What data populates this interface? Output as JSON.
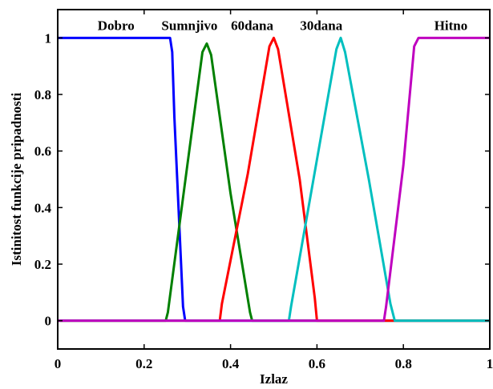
{
  "chart_data": {
    "type": "line",
    "title": "",
    "xlabel": "Izlaz",
    "ylabel": "Istinitost funkcije pripadnosti",
    "xlim": [
      0,
      1
    ],
    "ylim": [
      -0.1,
      1.1
    ],
    "xticks": [
      0,
      0.2,
      0.4,
      0.6,
      0.8,
      1
    ],
    "xtick_labels": [
      "0",
      "0.2",
      "0.4",
      "0.6",
      "0.8",
      "1"
    ],
    "yticks": [
      0,
      0.2,
      0.4,
      0.6,
      0.8,
      1
    ],
    "ytick_labels": [
      "0",
      "0.2",
      "0.4",
      "0.6",
      "0.8",
      "1"
    ],
    "grid": false,
    "series": [
      {
        "name": "Dobro",
        "color": "#0000ff",
        "x": [
          0,
          0.26,
          0.265,
          0.27,
          0.29,
          0.295,
          1
        ],
        "y": [
          1,
          1,
          0.95,
          0.72,
          0.05,
          0,
          0
        ]
      },
      {
        "name": "Sumnjivo",
        "color": "#008000",
        "x": [
          0,
          0.25,
          0.255,
          0.3,
          0.335,
          0.345,
          0.355,
          0.4,
          0.445,
          0.45,
          1
        ],
        "y": [
          0,
          0,
          0.03,
          0.55,
          0.95,
          0.98,
          0.94,
          0.45,
          0.03,
          0,
          0
        ]
      },
      {
        "name": "60dana",
        "color": "#ff0000",
        "x": [
          0,
          0.375,
          0.38,
          0.44,
          0.49,
          0.5,
          0.51,
          0.56,
          0.595,
          0.6,
          1
        ],
        "y": [
          0,
          0,
          0.06,
          0.52,
          0.97,
          1,
          0.96,
          0.5,
          0.08,
          0,
          0
        ]
      },
      {
        "name": "30dana",
        "color": "#00bfbf",
        "x": [
          0,
          0.535,
          0.54,
          0.6,
          0.645,
          0.655,
          0.665,
          0.72,
          0.77,
          0.78,
          1
        ],
        "y": [
          0,
          0,
          0.05,
          0.57,
          0.96,
          1,
          0.95,
          0.5,
          0.06,
          0,
          0
        ]
      },
      {
        "name": "Hitno",
        "color": "#bf00bf",
        "x": [
          0,
          0.755,
          0.76,
          0.8,
          0.825,
          0.835,
          1
        ],
        "y": [
          0,
          0,
          0.05,
          0.55,
          0.97,
          1,
          1
        ]
      }
    ],
    "annotations": [
      {
        "text": "Dobro",
        "x": 0.135,
        "y": 1.045
      },
      {
        "text": "Sumnjivo",
        "x": 0.305,
        "y": 1.045
      },
      {
        "text": "60dana",
        "x": 0.45,
        "y": 1.045
      },
      {
        "text": "30dana",
        "x": 0.61,
        "y": 1.045
      },
      {
        "text": "Hitno",
        "x": 0.91,
        "y": 1.045
      }
    ]
  }
}
